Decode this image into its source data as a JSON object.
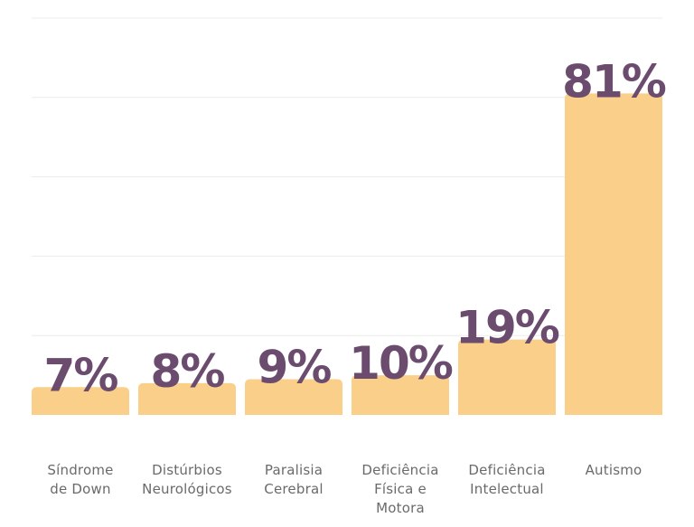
{
  "chart_data": {
    "type": "bar",
    "title": "",
    "xlabel": "",
    "ylabel": "",
    "ylim": [
      0,
      100
    ],
    "yticks": [
      0,
      20,
      40,
      60,
      80,
      100
    ],
    "grid": true,
    "legend": "none",
    "categories": [
      [
        "Síndrome",
        "de Down"
      ],
      [
        "Distúrbios",
        "Neurológicos"
      ],
      [
        "Paralisia",
        "Cerebral"
      ],
      [
        "Deficiência",
        "Física e",
        "Motora"
      ],
      [
        "Deficiência",
        "Intelectual"
      ],
      [
        "Autismo"
      ]
    ],
    "values": [
      7,
      8,
      9,
      10,
      19,
      81
    ],
    "data_labels": [
      "7%",
      "8%",
      "9%",
      "10%",
      "19%",
      "81%"
    ],
    "colors": {
      "bar": "#f9cf89",
      "label": "#6b4c6e",
      "grid": "#ececec",
      "category_text": "#6a6a6a"
    }
  }
}
